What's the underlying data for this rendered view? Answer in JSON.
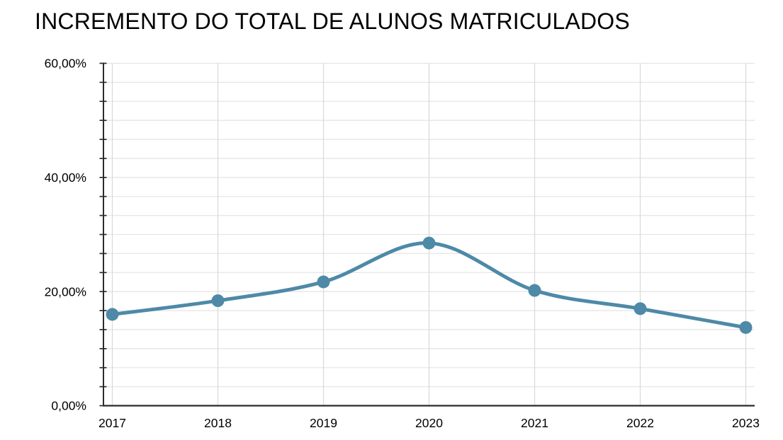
{
  "title": "INCREMENTO DO TOTAL DE ALUNOS MATRICULADOS",
  "chart_data": {
    "type": "line",
    "title": "INCREMENTO DO TOTAL DE ALUNOS MATRICULADOS",
    "categories": [
      "2017",
      "2018",
      "2019",
      "2020",
      "2021",
      "2022",
      "2023"
    ],
    "values": [
      16.0,
      18.4,
      21.7,
      28.5,
      20.2,
      17.0,
      13.7
    ],
    "xlabel": "",
    "ylabel": "",
    "ylim": [
      0,
      60
    ],
    "y_axis": {
      "major_ticks": [
        {
          "value": 0,
          "label": "0,00%"
        },
        {
          "value": 20,
          "label": "20,00%"
        },
        {
          "value": 40,
          "label": "40,00%"
        },
        {
          "value": 60,
          "label": "60,00%"
        }
      ],
      "minor_divisions_per_major": 6
    },
    "grid": true,
    "smooth_line": true,
    "legend": "none",
    "point_radius": 9,
    "line_width": 5,
    "colors": {
      "line": "#4e89a8",
      "point": "#4e89a8",
      "grid_horizontal": "#e6e6e6",
      "grid_vertical": "#dadada",
      "axis": "#2b2b2b",
      "text": "#000000",
      "background": "#ffffff"
    }
  }
}
